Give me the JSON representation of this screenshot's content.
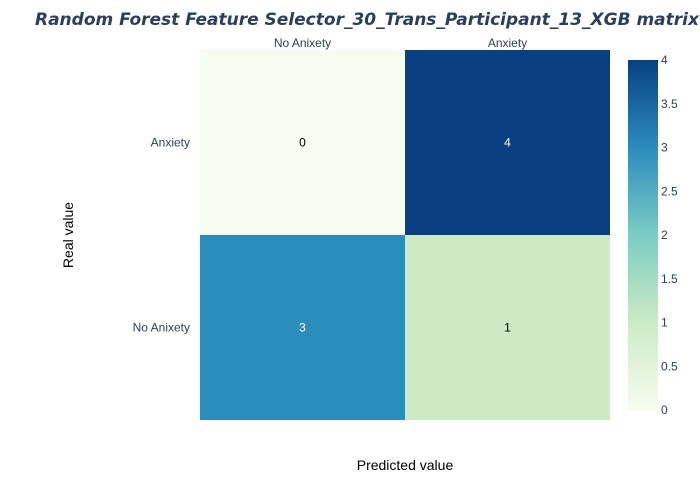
{
  "chart_data": {
    "type": "heatmap",
    "title": "Random Forest Feature Selector_30_Trans_Participant_13_XGB matrix",
    "xlabel": "Predicted value",
    "ylabel": "Real value",
    "x_categories": [
      "No Anixety",
      "Anxiety"
    ],
    "y_categories": [
      "Anxiety",
      "No Anixety"
    ],
    "z": [
      [
        0,
        4
      ],
      [
        3,
        1
      ]
    ],
    "zlim": [
      0,
      4
    ],
    "colorscale": "GnBu",
    "colorbar_ticks": [
      "0",
      "0.5",
      "1",
      "1.5",
      "2",
      "2.5",
      "3",
      "3.5",
      "4"
    ],
    "x_axis_side": "top"
  },
  "colors": {
    "title": "#2a3f5f",
    "scale": [
      "#f7fcf0",
      "#ccebc5",
      "#7bccc4",
      "#2b8cbe",
      "#084081"
    ]
  }
}
